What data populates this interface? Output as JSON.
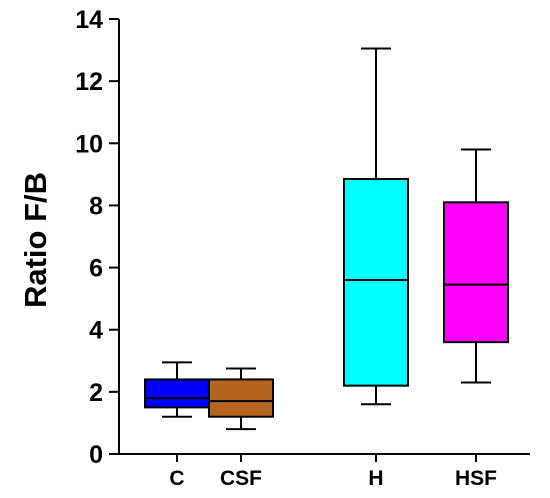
{
  "chart_data": {
    "type": "box",
    "ylabel": "Ratio F/B",
    "xlabel": "",
    "ylim": [
      0,
      14
    ],
    "yticks": [
      0,
      2,
      4,
      6,
      8,
      10,
      12,
      14
    ],
    "grid": false,
    "categories": [
      "C",
      "CSF",
      "H",
      "HSF"
    ],
    "boxes": [
      {
        "category": "C",
        "min": 1.2,
        "q1": 1.5,
        "median": 1.8,
        "q3": 2.4,
        "max": 2.95,
        "color": "#0000ff"
      },
      {
        "category": "CSF",
        "min": 0.8,
        "q1": 1.2,
        "median": 1.7,
        "q3": 2.4,
        "max": 2.75,
        "color": "#b5651d"
      },
      {
        "category": "H",
        "min": 1.6,
        "q1": 2.2,
        "median": 5.6,
        "q3": 8.85,
        "max": 13.05,
        "color": "#00ffff"
      },
      {
        "category": "HSF",
        "min": 2.3,
        "q1": 3.6,
        "median": 5.45,
        "q3": 8.1,
        "max": 9.8,
        "color": "#ff00ff"
      }
    ]
  }
}
